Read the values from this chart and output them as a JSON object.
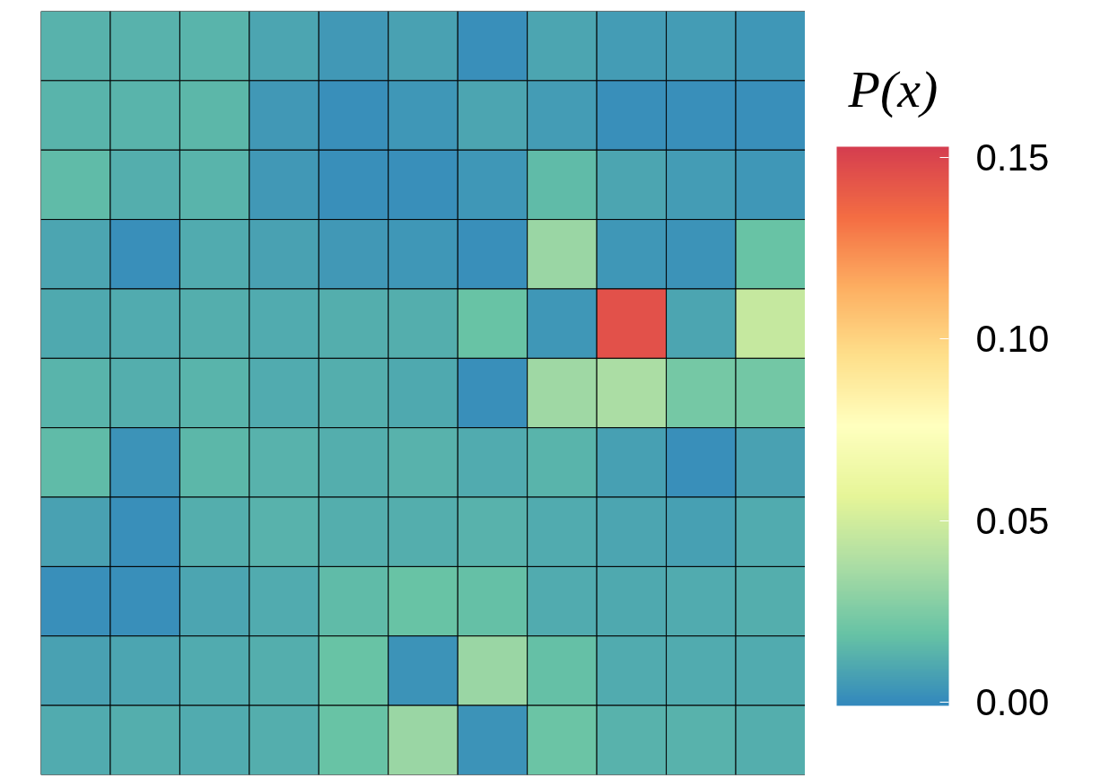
{
  "chart_data": {
    "type": "heatmap",
    "clabel": "P(x)",
    "categories": [
      null,
      null,
      null,
      null,
      null,
      null,
      null,
      null,
      null,
      null,
      null
    ],
    "y_categories": [
      null,
      null,
      null,
      null,
      null,
      null,
      null,
      null,
      null,
      null,
      null
    ],
    "cells": [
      [
        0.013,
        0.013,
        0.014,
        0.009,
        0.005,
        0.008,
        0.002,
        0.009,
        0.006,
        0.006,
        0.004
      ],
      [
        0.014,
        0.014,
        0.015,
        0.005,
        0.002,
        0.004,
        0.009,
        0.006,
        0.002,
        0.002,
        0.002
      ],
      [
        0.016,
        0.012,
        0.014,
        0.005,
        0.002,
        0.002,
        0.004,
        0.016,
        0.009,
        0.006,
        0.004
      ],
      [
        0.009,
        0.002,
        0.011,
        0.008,
        0.005,
        0.004,
        0.002,
        0.033,
        0.004,
        0.003,
        0.019
      ],
      [
        0.01,
        0.011,
        0.012,
        0.011,
        0.012,
        0.012,
        0.019,
        0.004,
        0.145,
        0.009,
        0.046
      ],
      [
        0.014,
        0.012,
        0.014,
        0.011,
        0.012,
        0.01,
        0.002,
        0.034,
        0.038,
        0.023,
        0.022
      ],
      [
        0.016,
        0.003,
        0.015,
        0.013,
        0.012,
        0.013,
        0.011,
        0.014,
        0.007,
        0.002,
        0.008
      ],
      [
        0.008,
        0.002,
        0.012,
        0.013,
        0.012,
        0.012,
        0.013,
        0.011,
        0.009,
        0.007,
        0.011
      ],
      [
        0.002,
        0.002,
        0.009,
        0.011,
        0.016,
        0.019,
        0.018,
        0.011,
        0.01,
        0.011,
        0.012
      ],
      [
        0.008,
        0.009,
        0.011,
        0.012,
        0.019,
        0.003,
        0.033,
        0.018,
        0.011,
        0.011,
        0.011
      ],
      [
        0.011,
        0.012,
        0.011,
        0.012,
        0.019,
        0.033,
        0.003,
        0.02,
        0.013,
        0.013,
        0.012
      ]
    ],
    "clim": [
      -0.001,
      0.153
    ],
    "cticks": [
      {
        "value": 0,
        "label": "0.00"
      },
      {
        "value": 0.05,
        "label": "0.05"
      },
      {
        "value": 0.1,
        "label": "0.10"
      },
      {
        "value": 0.15,
        "label": "0.15"
      }
    ],
    "tick_labels": false
  }
}
